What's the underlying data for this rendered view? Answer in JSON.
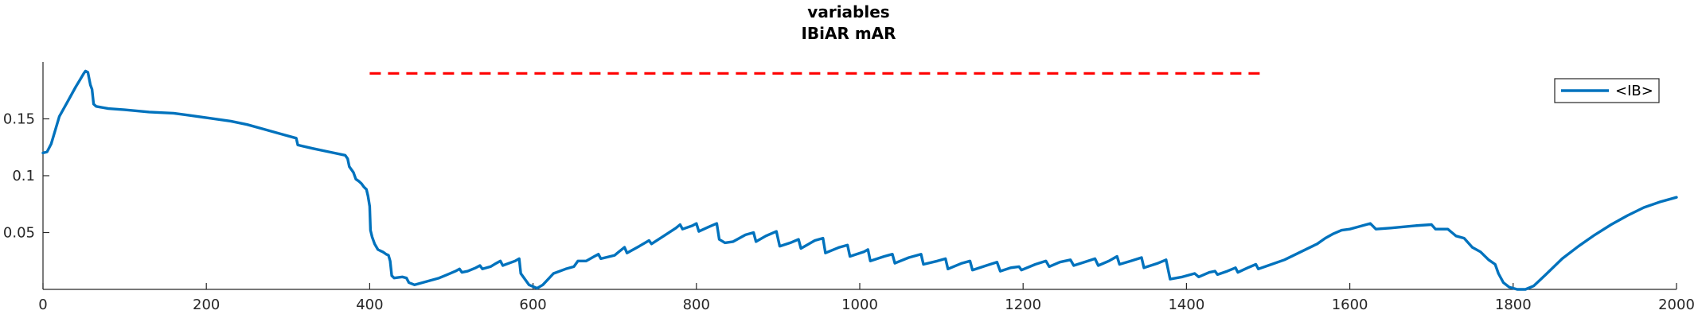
{
  "chart_data": {
    "type": "line",
    "title": "variables",
    "subtitle": "IBiAR mAR",
    "xlabel": "",
    "ylabel": "",
    "xlim": [
      0,
      2000
    ],
    "ylim": [
      0,
      0.2
    ],
    "grid": false,
    "legend_position": "top-right",
    "x_ticks": [
      "0",
      "200",
      "400",
      "600",
      "800",
      "1000",
      "1200",
      "1400",
      "1600",
      "1800",
      "2000"
    ],
    "y_ticks": [
      "0.05",
      "0.1",
      "0.15"
    ],
    "x_tick_values": [
      0,
      200,
      400,
      600,
      800,
      1000,
      1200,
      1400,
      1600,
      1800,
      2000
    ],
    "y_tick_values": [
      0.05,
      0.1,
      0.15
    ],
    "series": [
      {
        "name": "<IB>",
        "color": "#0072BD",
        "points": [
          [
            0,
            0.12
          ],
          [
            5,
            0.121
          ],
          [
            10,
            0.128
          ],
          [
            15,
            0.14
          ],
          [
            20,
            0.152
          ],
          [
            30,
            0.165
          ],
          [
            40,
            0.178
          ],
          [
            45,
            0.184
          ],
          [
            50,
            0.19
          ],
          [
            52,
            0.192
          ],
          [
            55,
            0.191
          ],
          [
            58,
            0.18
          ],
          [
            60,
            0.176
          ],
          [
            62,
            0.163
          ],
          [
            65,
            0.161
          ],
          [
            80,
            0.159
          ],
          [
            100,
            0.158
          ],
          [
            130,
            0.156
          ],
          [
            160,
            0.155
          ],
          [
            180,
            0.153
          ],
          [
            200,
            0.151
          ],
          [
            230,
            0.148
          ],
          [
            250,
            0.145
          ],
          [
            270,
            0.141
          ],
          [
            290,
            0.137
          ],
          [
            310,
            0.133
          ],
          [
            312,
            0.127
          ],
          [
            330,
            0.124
          ],
          [
            350,
            0.121
          ],
          [
            370,
            0.118
          ],
          [
            373,
            0.115
          ],
          [
            375,
            0.108
          ],
          [
            380,
            0.103
          ],
          [
            383,
            0.097
          ],
          [
            387,
            0.095
          ],
          [
            390,
            0.093
          ],
          [
            393,
            0.09
          ],
          [
            396,
            0.088
          ],
          [
            398,
            0.082
          ],
          [
            400,
            0.073
          ],
          [
            401,
            0.052
          ],
          [
            403,
            0.046
          ],
          [
            406,
            0.04
          ],
          [
            410,
            0.035
          ],
          [
            413,
            0.034
          ],
          [
            416,
            0.033
          ],
          [
            418,
            0.032
          ],
          [
            420,
            0.031
          ],
          [
            423,
            0.03
          ],
          [
            425,
            0.025
          ],
          [
            427,
            0.012
          ],
          [
            430,
            0.01
          ],
          [
            440,
            0.011
          ],
          [
            445,
            0.01
          ],
          [
            448,
            0.006
          ],
          [
            455,
            0.004
          ],
          [
            470,
            0.007
          ],
          [
            485,
            0.01
          ],
          [
            495,
            0.013
          ],
          [
            505,
            0.016
          ],
          [
            510,
            0.018
          ],
          [
            513,
            0.015
          ],
          [
            520,
            0.016
          ],
          [
            530,
            0.019
          ],
          [
            535,
            0.021
          ],
          [
            538,
            0.018
          ],
          [
            548,
            0.02
          ],
          [
            555,
            0.023
          ],
          [
            560,
            0.025
          ],
          [
            563,
            0.021
          ],
          [
            578,
            0.025
          ],
          [
            583,
            0.027
          ],
          [
            585,
            0.014
          ],
          [
            595,
            0.004
          ],
          [
            605,
            0.001
          ],
          [
            612,
            0.004
          ],
          [
            625,
            0.014
          ],
          [
            640,
            0.018
          ],
          [
            650,
            0.02
          ],
          [
            655,
            0.025
          ],
          [
            665,
            0.025
          ],
          [
            675,
            0.029
          ],
          [
            680,
            0.031
          ],
          [
            683,
            0.027
          ],
          [
            700,
            0.03
          ],
          [
            705,
            0.033
          ],
          [
            712,
            0.037
          ],
          [
            715,
            0.032
          ],
          [
            730,
            0.038
          ],
          [
            742,
            0.043
          ],
          [
            745,
            0.04
          ],
          [
            760,
            0.047
          ],
          [
            775,
            0.054
          ],
          [
            780,
            0.057
          ],
          [
            783,
            0.053
          ],
          [
            795,
            0.056
          ],
          [
            800,
            0.058
          ],
          [
            803,
            0.051
          ],
          [
            815,
            0.055
          ],
          [
            825,
            0.058
          ],
          [
            828,
            0.044
          ],
          [
            835,
            0.041
          ],
          [
            845,
            0.042
          ],
          [
            860,
            0.048
          ],
          [
            870,
            0.05
          ],
          [
            873,
            0.042
          ],
          [
            885,
            0.047
          ],
          [
            898,
            0.051
          ],
          [
            902,
            0.038
          ],
          [
            915,
            0.041
          ],
          [
            925,
            0.044
          ],
          [
            928,
            0.036
          ],
          [
            945,
            0.043
          ],
          [
            955,
            0.045
          ],
          [
            958,
            0.032
          ],
          [
            975,
            0.037
          ],
          [
            985,
            0.039
          ],
          [
            988,
            0.029
          ],
          [
            1005,
            0.033
          ],
          [
            1010,
            0.035
          ],
          [
            1013,
            0.025
          ],
          [
            1030,
            0.029
          ],
          [
            1040,
            0.031
          ],
          [
            1043,
            0.023
          ],
          [
            1060,
            0.028
          ],
          [
            1075,
            0.031
          ],
          [
            1078,
            0.022
          ],
          [
            1095,
            0.025
          ],
          [
            1105,
            0.027
          ],
          [
            1108,
            0.018
          ],
          [
            1125,
            0.023
          ],
          [
            1135,
            0.025
          ],
          [
            1138,
            0.017
          ],
          [
            1155,
            0.021
          ],
          [
            1168,
            0.024
          ],
          [
            1172,
            0.016
          ],
          [
            1185,
            0.019
          ],
          [
            1195,
            0.02
          ],
          [
            1198,
            0.017
          ],
          [
            1215,
            0.022
          ],
          [
            1228,
            0.025
          ],
          [
            1232,
            0.02
          ],
          [
            1245,
            0.024
          ],
          [
            1258,
            0.026
          ],
          [
            1262,
            0.021
          ],
          [
            1275,
            0.024
          ],
          [
            1288,
            0.027
          ],
          [
            1292,
            0.021
          ],
          [
            1305,
            0.025
          ],
          [
            1315,
            0.029
          ],
          [
            1318,
            0.022
          ],
          [
            1332,
            0.025
          ],
          [
            1345,
            0.028
          ],
          [
            1348,
            0.019
          ],
          [
            1365,
            0.023
          ],
          [
            1375,
            0.026
          ],
          [
            1380,
            0.009
          ],
          [
            1395,
            0.011
          ],
          [
            1410,
            0.014
          ],
          [
            1415,
            0.011
          ],
          [
            1428,
            0.015
          ],
          [
            1435,
            0.016
          ],
          [
            1438,
            0.013
          ],
          [
            1450,
            0.016
          ],
          [
            1460,
            0.019
          ],
          [
            1463,
            0.015
          ],
          [
            1475,
            0.019
          ],
          [
            1485,
            0.022
          ],
          [
            1488,
            0.018
          ],
          [
            1500,
            0.021
          ],
          [
            1520,
            0.026
          ],
          [
            1540,
            0.033
          ],
          [
            1560,
            0.04
          ],
          [
            1570,
            0.045
          ],
          [
            1580,
            0.049
          ],
          [
            1590,
            0.052
          ],
          [
            1600,
            0.053
          ],
          [
            1610,
            0.055
          ],
          [
            1625,
            0.058
          ],
          [
            1632,
            0.053
          ],
          [
            1650,
            0.054
          ],
          [
            1680,
            0.056
          ],
          [
            1700,
            0.057
          ],
          [
            1705,
            0.053
          ],
          [
            1720,
            0.053
          ],
          [
            1725,
            0.05
          ],
          [
            1730,
            0.047
          ],
          [
            1740,
            0.045
          ],
          [
            1750,
            0.037
          ],
          [
            1760,
            0.033
          ],
          [
            1770,
            0.026
          ],
          [
            1778,
            0.022
          ],
          [
            1782,
            0.014
          ],
          [
            1788,
            0.006
          ],
          [
            1795,
            0.002
          ],
          [
            1805,
            0.0
          ],
          [
            1815,
            0.0
          ],
          [
            1825,
            0.003
          ],
          [
            1840,
            0.013
          ],
          [
            1860,
            0.027
          ],
          [
            1880,
            0.038
          ],
          [
            1900,
            0.048
          ],
          [
            1920,
            0.057
          ],
          [
            1940,
            0.065
          ],
          [
            1960,
            0.072
          ],
          [
            1980,
            0.077
          ],
          [
            2000,
            0.081
          ]
        ]
      }
    ],
    "markers": [
      {
        "name": "IBiAR mAR",
        "color": "#FF0000",
        "style": "dashed",
        "y": 0.19,
        "x": [
          400,
          1490
        ]
      }
    ]
  }
}
